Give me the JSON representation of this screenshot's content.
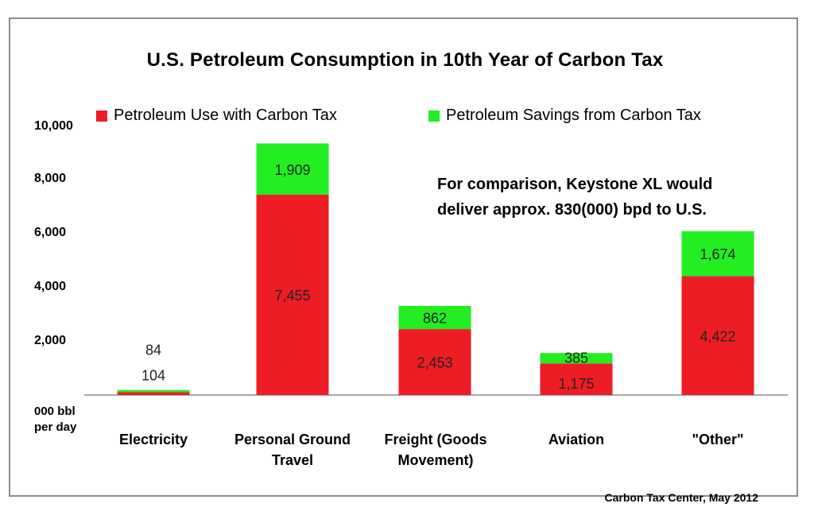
{
  "chart_data": {
    "type": "bar",
    "stacked": true,
    "title": "U.S. Petroleum Consumption in 10th Year of Carbon Tax",
    "ylabel": "000 bbl per day",
    "ylim": [
      0,
      10000
    ],
    "yticks": [
      "10,000",
      "8,000",
      "6,000",
      "4,000",
      "2,000"
    ],
    "categories": [
      [
        "Electricity"
      ],
      [
        "Personal Ground",
        "Travel"
      ],
      [
        "Freight (Goods",
        "Movement)"
      ],
      [
        "Aviation"
      ],
      [
        "\"Other\""
      ]
    ],
    "series": [
      {
        "name": "Petroleum Use with Carbon Tax",
        "color": "#ee1c25",
        "values": [
          104,
          7455,
          2453,
          1175,
          4422
        ],
        "labels": [
          "104",
          "7,455",
          "2,453",
          "1,175",
          "4,422"
        ]
      },
      {
        "name": "Petroleum Savings from Carbon Tax",
        "color": "#22ee22",
        "values": [
          84,
          1909,
          862,
          385,
          1674
        ],
        "labels": [
          "84",
          "1,909",
          "862",
          "385",
          "1,674"
        ]
      }
    ],
    "annotation": [
      "For comparison, Keystone XL would",
      "deliver approx. 830(000) bpd to U.S."
    ],
    "source": "Carbon Tax Center, May 2012",
    "legend_position": "top",
    "grid": false
  }
}
